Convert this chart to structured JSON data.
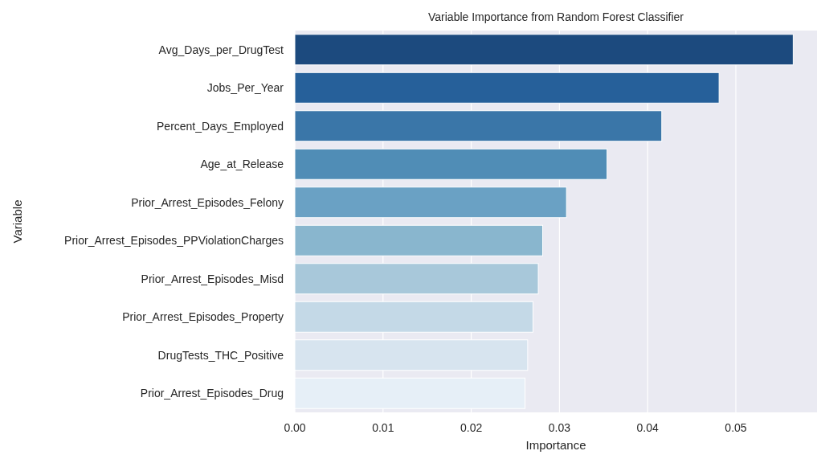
{
  "chart_data": {
    "type": "bar",
    "orientation": "horizontal",
    "title": "Variable Importance from Random Forest Classifier",
    "xlabel": "Importance",
    "ylabel": "Variable",
    "categories": [
      "Avg_Days_per_DrugTest",
      "Jobs_Per_Year",
      "Percent_Days_Employed",
      "Age_at_Release",
      "Prior_Arrest_Episodes_Felony",
      "Prior_Arrest_Episodes_PPViolationCharges",
      "Prior_Arrest_Episodes_Misd",
      "Prior_Arrest_Episodes_Property",
      "DrugTests_THC_Positive",
      "Prior_Arrest_Episodes_Drug"
    ],
    "values": [
      0.0565,
      0.0481,
      0.0416,
      0.0354,
      0.0308,
      0.0281,
      0.0276,
      0.027,
      0.0264,
      0.0261
    ],
    "colors": [
      "#1c4a7e",
      "#26609a",
      "#3a76a8",
      "#508db6",
      "#6aa1c4",
      "#89b6ce",
      "#a8c8da",
      "#c4d9e7",
      "#d7e4ef",
      "#e6eff7"
    ],
    "xlim": [
      0,
      0.0592
    ],
    "xticks": [
      {
        "value": 0,
        "label": "0.00"
      },
      {
        "value": 0.01,
        "label": "0.01"
      },
      {
        "value": 0.02,
        "label": "0.02"
      },
      {
        "value": 0.03,
        "label": "0.03"
      },
      {
        "value": 0.04,
        "label": "0.04"
      },
      {
        "value": 0.05,
        "label": "0.05"
      }
    ],
    "grid": "x"
  }
}
